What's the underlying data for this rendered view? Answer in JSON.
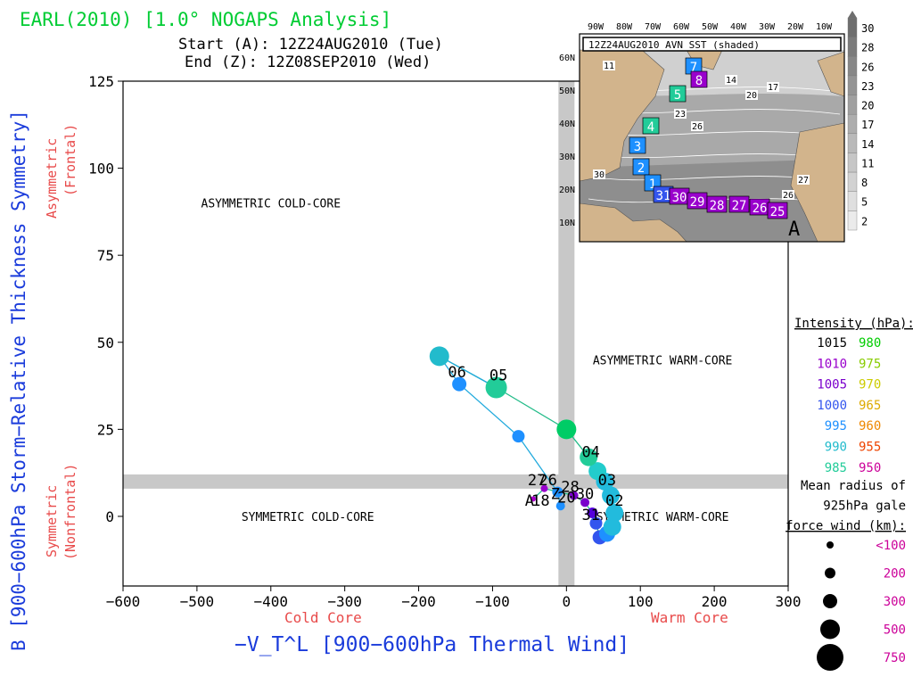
{
  "title": "EARL(2010) [1.0° NOGAPS Analysis]",
  "start_text": "Start (A): 12Z24AUG2010 (Tue)",
  "end_text": "End (Z): 12Z08SEP2010 (Wed)",
  "colors": {
    "title": "#00cc33",
    "blue_label": "#1a3bdb",
    "red_label": "#e84a4a",
    "purple": "#9900cc",
    "teal": "#22cc99",
    "cyan": "#22bbdd",
    "sky": "#1e90ff",
    "blue": "#3355ee",
    "green": "#00cc33",
    "magenta": "#cc0099",
    "grid_band": "#c8c8c8"
  },
  "chart_data": {
    "type": "scatter",
    "xlabel": "−V_T^L [900−600hPa Thermal Wind]",
    "ylabel": "B [900−600hPa Storm−Relative Thickness Symmetry]",
    "xlim": [
      -600,
      300
    ],
    "ylim": [
      -20,
      125
    ],
    "xticks": [
      -600,
      -500,
      -400,
      -300,
      -200,
      -100,
      0,
      100,
      200,
      300
    ],
    "yticks": [
      0,
      25,
      50,
      75,
      100,
      125
    ],
    "x_sublabels": {
      "left": "Cold Core",
      "right": "Warm Core"
    },
    "y_sublabels": {
      "top": "Asymmetric (Frontal)",
      "bottom": "Symmetric (Nonfrontal)"
    },
    "quadrants": {
      "asym_cold": "ASYMMETRIC COLD-CORE",
      "asym_warm": "ASYMMETRIC WARM-CORE",
      "sym_cold": "SYMMETRIC COLD-CORE",
      "sym_warm": "SYMMETRIC WARM-CORE"
    },
    "track": [
      {
        "x": -45,
        "y": 5,
        "color": "#aa00cc",
        "size": 3
      },
      {
        "x": -30,
        "y": 8,
        "color": "#9900cc",
        "size": 4
      },
      {
        "x": -10,
        "y": 7,
        "color": "#9900cc",
        "size": 4
      },
      {
        "x": 10,
        "y": 6,
        "color": "#7a00cc",
        "size": 5
      },
      {
        "x": 25,
        "y": 4,
        "color": "#7a00cc",
        "size": 5
      },
      {
        "x": 35,
        "y": 1,
        "color": "#5500dd",
        "size": 6
      },
      {
        "x": 40,
        "y": -2,
        "color": "#3355ee",
        "size": 7
      },
      {
        "x": 45,
        "y": -6,
        "color": "#3355ee",
        "size": 8
      },
      {
        "x": 55,
        "y": -5,
        "color": "#1e90ff",
        "size": 9
      },
      {
        "x": 62,
        "y": -3,
        "color": "#22bbdd",
        "size": 10
      },
      {
        "x": 65,
        "y": 1,
        "color": "#22bbdd",
        "size": 10
      },
      {
        "x": 60,
        "y": 6,
        "color": "#22bbdd",
        "size": 10
      },
      {
        "x": 52,
        "y": 10,
        "color": "#22bbdd",
        "size": 10
      },
      {
        "x": 42,
        "y": 13,
        "color": "#22cccc",
        "size": 10
      },
      {
        "x": 30,
        "y": 17,
        "color": "#22cc99",
        "size": 10
      },
      {
        "x": 0,
        "y": 25,
        "color": "#00cc66",
        "size": 11
      },
      {
        "x": -95,
        "y": 37,
        "color": "#22cc99",
        "size": 12
      },
      {
        "x": -172,
        "y": 46,
        "color": "#22bbcc",
        "size": 11
      },
      {
        "x": -145,
        "y": 38,
        "color": "#1e90ff",
        "size": 8
      },
      {
        "x": -65,
        "y": 23,
        "color": "#1e90ff",
        "size": 7
      },
      {
        "x": -12,
        "y": 7,
        "color": "#1e90ff",
        "size": 6
      },
      {
        "x": -8,
        "y": 3,
        "color": "#1e90ff",
        "size": 5
      }
    ],
    "point_labels": [
      {
        "text": "06",
        "x": -148,
        "y": 40
      },
      {
        "text": "05",
        "x": -92,
        "y": 39
      },
      {
        "text": "04",
        "x": 33,
        "y": 17
      },
      {
        "text": "03",
        "x": 55,
        "y": 9
      },
      {
        "text": "02",
        "x": 65,
        "y": 3
      },
      {
        "text": "31",
        "x": 33,
        "y": -1
      },
      {
        "text": "27",
        "x": -40,
        "y": 9
      },
      {
        "text": "26",
        "x": -25,
        "y": 9
      },
      {
        "text": "28",
        "x": 5,
        "y": 7
      },
      {
        "text": "30",
        "x": 25,
        "y": 5
      },
      {
        "text": "A",
        "x": -50,
        "y": 3
      },
      {
        "text": "Z",
        "x": -15,
        "y": 5
      },
      {
        "text": "18",
        "x": -35,
        "y": 3
      },
      {
        "text": "20",
        "x": 0,
        "y": 4
      }
    ],
    "intensity_legend": {
      "title": "Intensity (hPa):",
      "rows": [
        {
          "a": "1015",
          "b": "980",
          "ca": "#000000",
          "cb": "#00cc00"
        },
        {
          "a": "1010",
          "b": "975",
          "ca": "#9900cc",
          "cb": "#88cc00"
        },
        {
          "a": "1005",
          "b": "970",
          "ca": "#7a00cc",
          "cb": "#cccc00"
        },
        {
          "a": "1000",
          "b": "965",
          "ca": "#3355ee",
          "cb": "#ddaa00"
        },
        {
          "a": "995",
          "b": "960",
          "ca": "#1e90ff",
          "cb": "#ee8800"
        },
        {
          "a": "990",
          "b": "955",
          "ca": "#22bbcc",
          "cb": "#ee4400"
        },
        {
          "a": "985",
          "b": "950",
          "ca": "#22cc99",
          "cb": "#cc0099"
        }
      ]
    },
    "radius_legend": {
      "title_lines": [
        "Mean radius of",
        "925hPa gale",
        "force wind (km):"
      ],
      "items": [
        {
          "label": "<100",
          "size": 4
        },
        {
          "label": "200",
          "size": 6
        },
        {
          "label": "300",
          "size": 8
        },
        {
          "label": "500",
          "size": 11
        },
        {
          "label": "750",
          "size": 15
        }
      ]
    }
  },
  "inset": {
    "header": "12Z24AUG2010 AVN SST (shaded)",
    "lon_labels": [
      "90W",
      "80W",
      "70W",
      "60W",
      "50W",
      "40W",
      "30W",
      "20W",
      "10W"
    ],
    "lat_labels": [
      "60N",
      "50N",
      "40N",
      "30N",
      "20N",
      "10N"
    ],
    "colorbar": [
      "30",
      "28",
      "26",
      "23",
      "20",
      "17",
      "14",
      "11",
      "8",
      "5",
      "2"
    ],
    "contour_labels": [
      "11",
      "14",
      "17",
      "20",
      "23",
      "26",
      "26",
      "30",
      "27"
    ],
    "track_boxes": [
      {
        "label": "7",
        "color": "#1e90ff"
      },
      {
        "label": "8",
        "color": "#9900cc"
      },
      {
        "label": "5",
        "color": "#22cc99"
      },
      {
        "label": "4",
        "color": "#22cc99"
      },
      {
        "label": "3",
        "color": "#1e90ff"
      },
      {
        "label": "2",
        "color": "#1e90ff"
      },
      {
        "label": "1",
        "color": "#1e90ff"
      },
      {
        "label": "31",
        "color": "#3355ee"
      },
      {
        "label": "30",
        "color": "#9900cc"
      },
      {
        "label": "29",
        "color": "#9900cc"
      },
      {
        "label": "28",
        "color": "#9900cc"
      },
      {
        "label": "27",
        "color": "#9900cc"
      },
      {
        "label": "26",
        "color": "#9900cc"
      },
      {
        "label": "25",
        "color": "#9900cc"
      }
    ],
    "end_marker": "A"
  }
}
